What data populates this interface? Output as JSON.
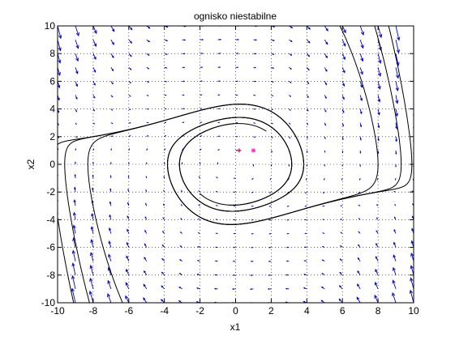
{
  "chart_data": {
    "type": "quiver",
    "title": "ognisko niestabilne",
    "xlabel": "x1",
    "ylabel": "x2",
    "xlim": [
      -10,
      10
    ],
    "ylim": [
      -10,
      10
    ],
    "xticks": [
      "-10",
      "-8",
      "-6",
      "-4",
      "-2",
      "0",
      "2",
      "4",
      "6",
      "8",
      "10"
    ],
    "yticks": [
      "-10",
      "-8",
      "-6",
      "-4",
      "-2",
      "0",
      "2",
      "4",
      "6",
      "8",
      "10"
    ],
    "grid": true,
    "vector_field": {
      "x_range": [
        -10,
        10
      ],
      "y_range": [
        -10,
        10
      ],
      "step": 1
    },
    "points": [
      {
        "x": 0.2,
        "y": 1.0,
        "color": "#e0003c",
        "marker": "+"
      },
      {
        "x": 1.0,
        "y": 1.0,
        "color": "#ff33cc",
        "marker": "*"
      }
    ],
    "colors": {
      "arrows": "#0000cc",
      "curves": "#000000",
      "grid": "#000000"
    }
  }
}
